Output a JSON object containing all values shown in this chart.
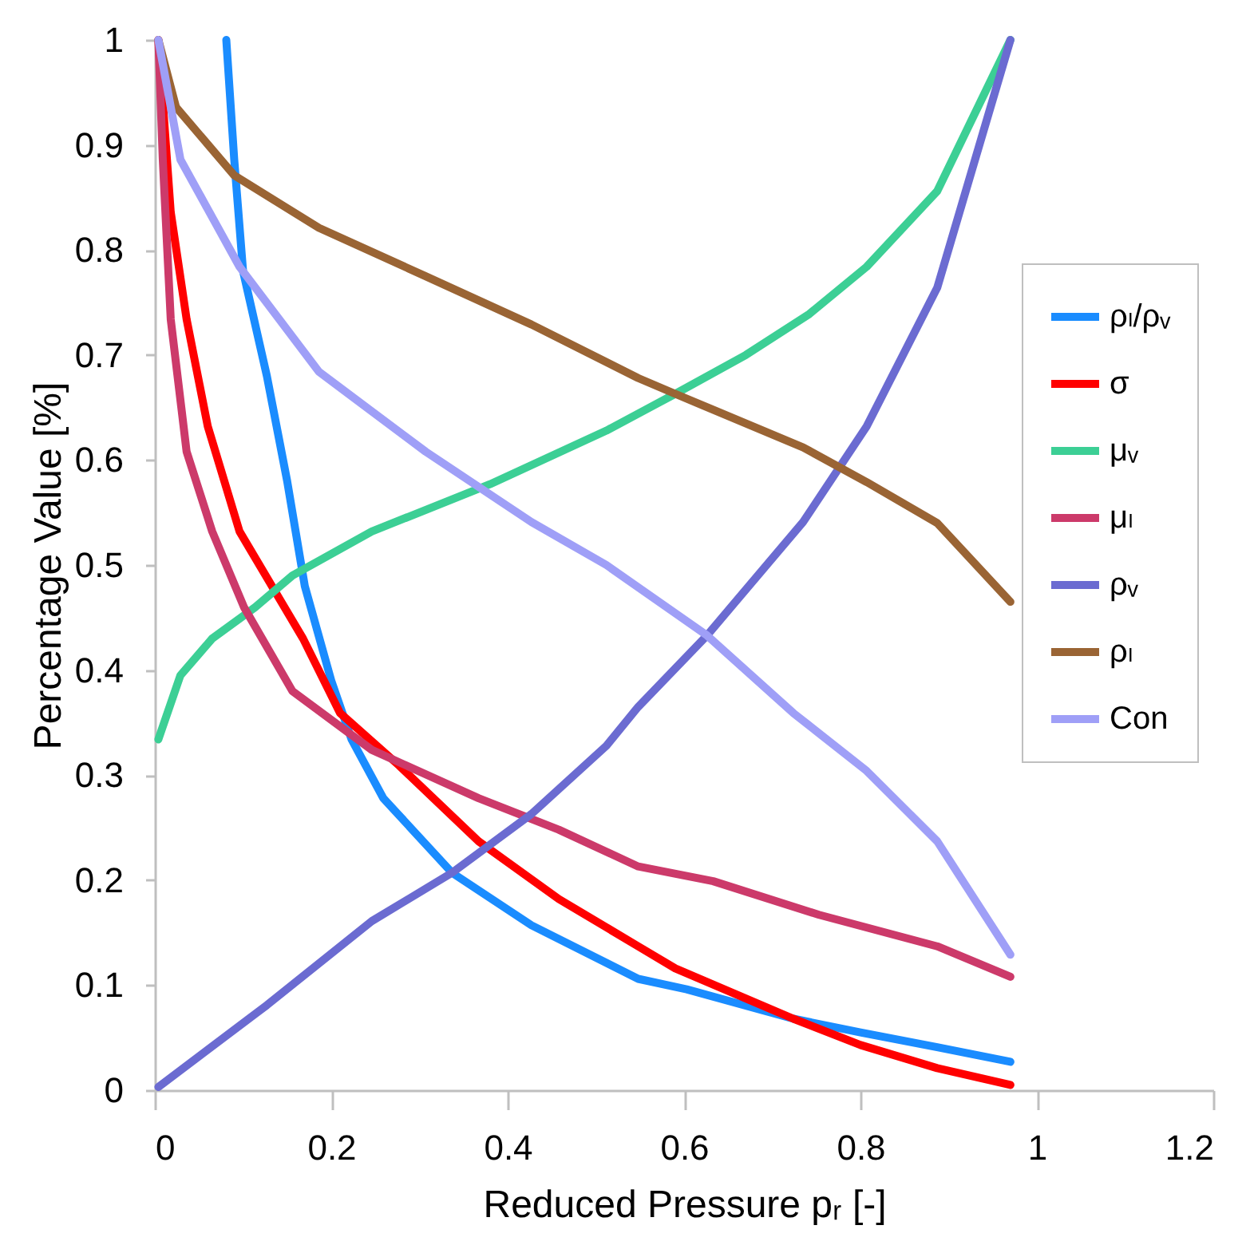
{
  "chart_data": {
    "type": "line",
    "xlabel": "Reduced Pressure pᵣ [-]",
    "ylabel": "Percentage Value [%]",
    "xlim": [
      0,
      1.2
    ],
    "xticks": [
      0,
      0.2,
      0.4,
      0.6,
      0.8,
      1,
      1.2
    ],
    "ylim": [
      0,
      1
    ],
    "yticks": [
      0,
      0.1,
      0.2,
      0.3,
      0.4,
      0.5,
      0.6,
      0.7,
      0.8,
      0.9,
      1
    ],
    "grid": false,
    "legend": "right",
    "marker": "none",
    "line_style": "solid",
    "series": [
      {
        "name": "ρₗ/ρᵥ",
        "color": "#1a8cff",
        "x": [
          0.081,
          0.09,
          0.1,
          0.127,
          0.15,
          0.17,
          0.2,
          0.223,
          0.259,
          0.337,
          0.427,
          0.548,
          0.603,
          0.724,
          0.8,
          0.887,
          0.97
        ],
        "values": [
          1,
          0.886,
          0.78,
          0.68,
          0.58,
          0.48,
          0.39,
          0.334,
          0.278,
          0.207,
          0.157,
          0.106,
          0.096,
          0.068,
          0.055,
          0.041,
          0.027
        ]
      },
      {
        "name": "σ",
        "color": "#ff0000",
        "x": [
          0.004,
          0.018,
          0.036,
          0.06,
          0.096,
          0.168,
          0.21,
          0.277,
          0.367,
          0.458,
          0.548,
          0.59,
          0.724,
          0.8,
          0.887,
          0.97
        ],
        "values": [
          1,
          0.836,
          0.734,
          0.632,
          0.532,
          0.43,
          0.359,
          0.309,
          0.237,
          0.182,
          0.137,
          0.116,
          0.068,
          0.043,
          0.021,
          0.005
        ]
      },
      {
        "name": "μᵥ",
        "color": "#3ccf95",
        "x": [
          0.004,
          0.029,
          0.065,
          0.114,
          0.156,
          0.246,
          0.38,
          0.512,
          0.59,
          0.67,
          0.742,
          0.807,
          0.887,
          0.97
        ],
        "values": [
          0.334,
          0.395,
          0.43,
          0.46,
          0.49,
          0.532,
          0.577,
          0.628,
          0.663,
          0.7,
          0.739,
          0.784,
          0.856,
          1
        ]
      },
      {
        "name": "μₗ",
        "color": "#cc3a6a",
        "x": [
          0.004,
          0.009,
          0.018,
          0.036,
          0.065,
          0.101,
          0.156,
          0.246,
          0.367,
          0.458,
          0.548,
          0.633,
          0.753,
          0.887,
          0.97
        ],
        "values": [
          1,
          0.886,
          0.734,
          0.608,
          0.532,
          0.46,
          0.38,
          0.324,
          0.278,
          0.248,
          0.213,
          0.199,
          0.167,
          0.137,
          0.108
        ]
      },
      {
        "name": "ρᵥ",
        "color": "#6b6bd1",
        "x": [
          0.004,
          0.127,
          0.246,
          0.337,
          0.427,
          0.512,
          0.548,
          0.626,
          0.735,
          0.807,
          0.887,
          0.97
        ],
        "values": [
          0.003,
          0.081,
          0.161,
          0.207,
          0.263,
          0.328,
          0.365,
          0.433,
          0.541,
          0.632,
          0.764,
          1
        ]
      },
      {
        "name": "ρₗ",
        "color": "#9a6434",
        "x": [
          0.004,
          0.024,
          0.09,
          0.186,
          0.307,
          0.427,
          0.548,
          0.59,
          0.735,
          0.807,
          0.887,
          0.97
        ],
        "values": [
          1,
          0.936,
          0.871,
          0.821,
          0.775,
          0.729,
          0.678,
          0.663,
          0.612,
          0.579,
          0.54,
          0.465
        ]
      },
      {
        "name": "Con",
        "color": "#9f9ff7",
        "x": [
          0.004,
          0.029,
          0.096,
          0.186,
          0.307,
          0.427,
          0.512,
          0.626,
          0.724,
          0.807,
          0.887,
          0.97
        ],
        "values": [
          1,
          0.886,
          0.784,
          0.684,
          0.608,
          0.541,
          0.5,
          0.433,
          0.359,
          0.304,
          0.237,
          0.129
        ]
      }
    ]
  }
}
